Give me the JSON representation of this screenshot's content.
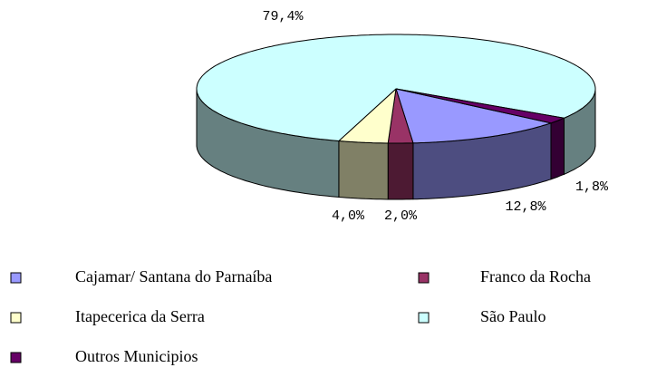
{
  "chart_data": {
    "type": "pie",
    "categories": [
      "Cajamar/ Santana do Parnaíba",
      "Franco da Rocha",
      "Itapecerica da Serra",
      "São Paulo",
      "Outros Municipios"
    ],
    "values": [
      12.8,
      2.0,
      4.0,
      79.4,
      1.8
    ],
    "value_labels": [
      "12,8%",
      "2,0%",
      "4,0%",
      "79,4%",
      "1,8%"
    ],
    "colors": [
      "#9999ff",
      "#993366",
      "#ffffcc",
      "#ccffff",
      "#660066"
    ],
    "legend": "bottom"
  }
}
